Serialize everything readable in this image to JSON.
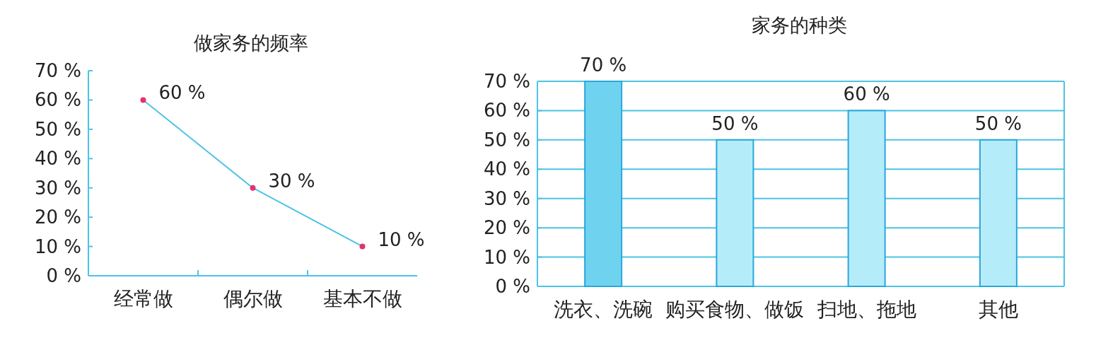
{
  "chart_data": [
    {
      "type": "line",
      "title": "做家务的频率",
      "categories": [
        "经常做",
        "偶尔做",
        "基本不做"
      ],
      "series": [
        {
          "color": "#4cc3e6",
          "colors": [
            "#e8306e",
            "#e8306e",
            "#e8306e"
          ],
          "values": [
            60,
            30,
            10
          ],
          "value_labels": [
            "60 %",
            "30 %",
            "10 %"
          ]
        }
      ],
      "marker": "circle",
      "ylim": [
        0,
        70
      ],
      "yticks": [
        {
          "value": 0,
          "label": "0 %"
        },
        {
          "value": 10,
          "label": "10 %"
        },
        {
          "value": 20,
          "label": "20 %"
        },
        {
          "value": 30,
          "label": "30 %"
        },
        {
          "value": 40,
          "label": "40 %"
        },
        {
          "value": 50,
          "label": "50 %"
        },
        {
          "value": 60,
          "label": "60 %"
        },
        {
          "value": 70,
          "label": "70 %"
        }
      ]
    },
    {
      "type": "bar",
      "title": "家务的种类",
      "categories": [
        "洗衣、洗碗",
        "购买食物、做饭",
        "扫地、拖地",
        "其他"
      ],
      "series": [
        {
          "colors": [
            "#6fd3f0",
            "#b5ecfa",
            "#b5ecfa",
            "#b5ecfa"
          ],
          "values": [
            70,
            50,
            60,
            50
          ],
          "value_labels": [
            "70 %",
            "50 %",
            "60 %",
            "50 %"
          ]
        }
      ],
      "grid": "y",
      "ylim": [
        0,
        70
      ],
      "yticks": [
        {
          "value": 0,
          "label": "0 %"
        },
        {
          "value": 10,
          "label": "10 %"
        },
        {
          "value": 20,
          "label": "20 %"
        },
        {
          "value": 30,
          "label": "30 %"
        },
        {
          "value": 40,
          "label": "40 %"
        },
        {
          "value": 50,
          "label": "50 %"
        },
        {
          "value": 60,
          "label": "60 %"
        },
        {
          "value": 70,
          "label": "70 %"
        }
      ]
    }
  ]
}
